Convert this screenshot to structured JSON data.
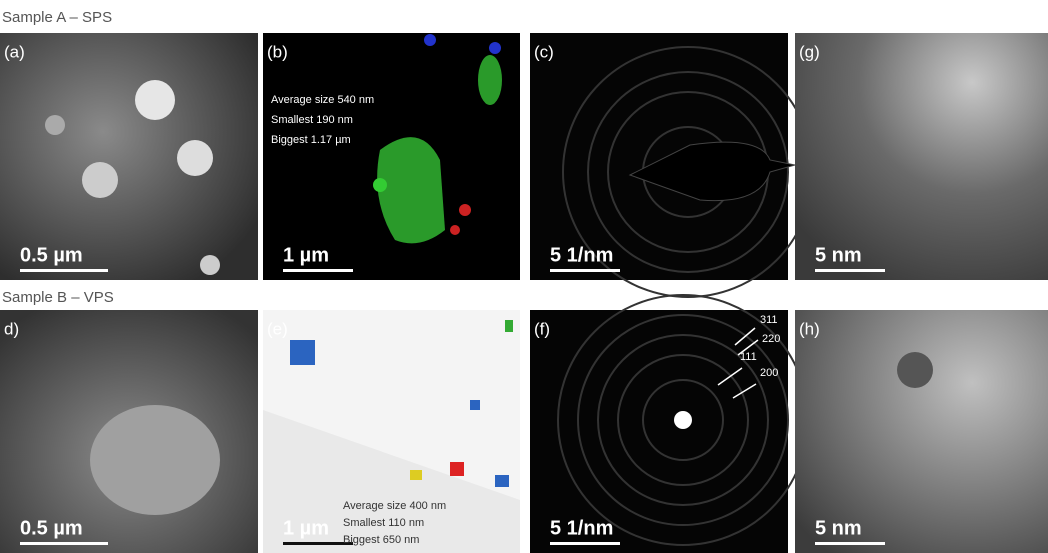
{
  "rows": [
    {
      "label": "Sample A – SPS",
      "panels": [
        {
          "letter": "(a)",
          "scale": "0.5 µm"
        },
        {
          "letter": "(b)",
          "scale": "1 µm",
          "notes": [
            "Average size 540 nm",
            "Smallest 190 nm",
            "Biggest 1.17 µm"
          ]
        },
        {
          "letter": "(c)",
          "scale": "5 1/nm"
        },
        {
          "letter": "(g)",
          "scale": "5 nm"
        }
      ]
    },
    {
      "label": "Sample B – VPS",
      "panels": [
        {
          "letter": "d)",
          "scale": "0.5 µm"
        },
        {
          "letter": "(e)",
          "scale": "1 µm",
          "notes": [
            "Average size 400 nm",
            "Smallest 110 nm",
            "Biggest 650 nm"
          ]
        },
        {
          "letter": "(f)",
          "scale": "5 1/nm",
          "annotations": [
            "311",
            "220",
            "111",
            "200"
          ]
        },
        {
          "letter": "(h)",
          "scale": "5 nm"
        }
      ]
    }
  ]
}
